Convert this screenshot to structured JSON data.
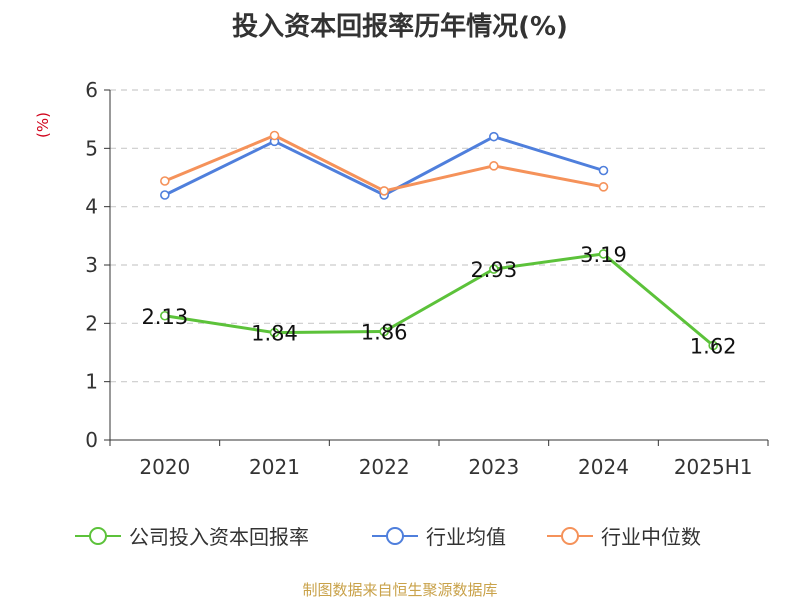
{
  "chart_data": {
    "type": "line",
    "title": "投入资本回报率历年情况(%)",
    "ylabel": "(%)",
    "categories": [
      "2020",
      "2021",
      "2022",
      "2023",
      "2024",
      "2025H1"
    ],
    "ylim": [
      0,
      6
    ],
    "yticks": [
      "0",
      "1",
      "2",
      "3",
      "4",
      "5",
      "6"
    ],
    "grid": true,
    "legend_position": "bottom",
    "series": [
      {
        "name": "公司投入资本回报率",
        "color": "#5cc23a",
        "values": [
          2.13,
          1.84,
          1.86,
          2.93,
          3.19,
          1.62
        ],
        "labels": [
          "2.13",
          "1.84",
          "1.86",
          "2.93",
          "3.19",
          "1.62"
        ]
      },
      {
        "name": "行业均值",
        "color": "#4f7fdc",
        "values": [
          4.2,
          5.12,
          4.2,
          5.2,
          4.62,
          null
        ]
      },
      {
        "name": "行业中位数",
        "color": "#f5925a",
        "values": [
          4.44,
          5.22,
          4.27,
          4.7,
          4.34,
          null
        ]
      }
    ]
  },
  "source": "制图数据来自恒生聚源数据库"
}
